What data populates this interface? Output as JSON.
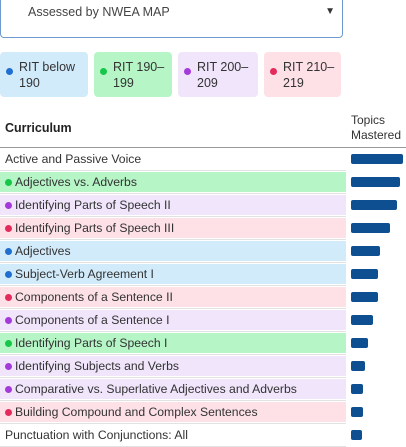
{
  "dropdown": {
    "value": "Assessed by NWEA MAP",
    "caret": "▼"
  },
  "legend": [
    {
      "label": "RIT below 190",
      "line1": "RIT below",
      "line2": "190",
      "bg": "#d2ebfb",
      "dot": "#1f6fd1"
    },
    {
      "label": "RIT 190–199",
      "line1": "RIT 190–",
      "line2": "199",
      "bg": "#b6f5c6",
      "dot": "#16c74a"
    },
    {
      "label": "RIT 200–209",
      "line1": "RIT 200–",
      "line2": "209",
      "bg": "#f0e5fb",
      "dot": "#a43ad9"
    },
    {
      "label": "RIT 210–219",
      "line1": "RIT 210–",
      "line2": "219",
      "bg": "#fde1e7",
      "dot": "#e52a5c"
    }
  ],
  "table": {
    "curriculum_header": "Curriculum",
    "topics_header_line1": "Topics",
    "topics_header_line2": "Mastered",
    "bar_max": 1.0,
    "rows": [
      {
        "label": "Active and Passive Voice",
        "level": "none",
        "mastered": 1.0
      },
      {
        "label": "Adjectives vs. Adverbs",
        "level": "190-199",
        "mastered": 0.94
      },
      {
        "label": "Identifying Parts of Speech II",
        "level": "200-209",
        "mastered": 0.88
      },
      {
        "label": "Identifying Parts of Speech III",
        "level": "210-219",
        "mastered": 0.75
      },
      {
        "label": "Adjectives",
        "level": "below-190",
        "mastered": 0.56
      },
      {
        "label": "Subject-Verb Agreement I",
        "level": "below-190",
        "mastered": 0.52
      },
      {
        "label": "Components of a Sentence II",
        "level": "210-219",
        "mastered": 0.52
      },
      {
        "label": "Components of a Sentence I",
        "level": "200-209",
        "mastered": 0.42
      },
      {
        "label": "Identifying Parts of Speech I",
        "level": "190-199",
        "mastered": 0.33
      },
      {
        "label": "Identifying Subjects and Verbs",
        "level": "200-209",
        "mastered": 0.27
      },
      {
        "label": "Comparative vs. Superlative Adjectives and Adverbs",
        "level": "200-209",
        "mastered": 0.23
      },
      {
        "label": "Building Compound and Complex Sentences",
        "level": "210-219",
        "mastered": 0.23
      },
      {
        "label": "Punctuation with Conjunctions: All",
        "level": "none",
        "mastered": 0.21
      }
    ]
  },
  "level_colors": {
    "below-190": {
      "bg": "#d2ebfb",
      "dot": "#1f6fd1"
    },
    "190-199": {
      "bg": "#b6f5c6",
      "dot": "#16c74a"
    },
    "200-209": {
      "bg": "#f0e5fb",
      "dot": "#a43ad9"
    },
    "210-219": {
      "bg": "#fde1e7",
      "dot": "#e52a5c"
    },
    "none": {
      "bg": "#ffffff",
      "dot": ""
    }
  },
  "bar_color": "#0d4f91"
}
